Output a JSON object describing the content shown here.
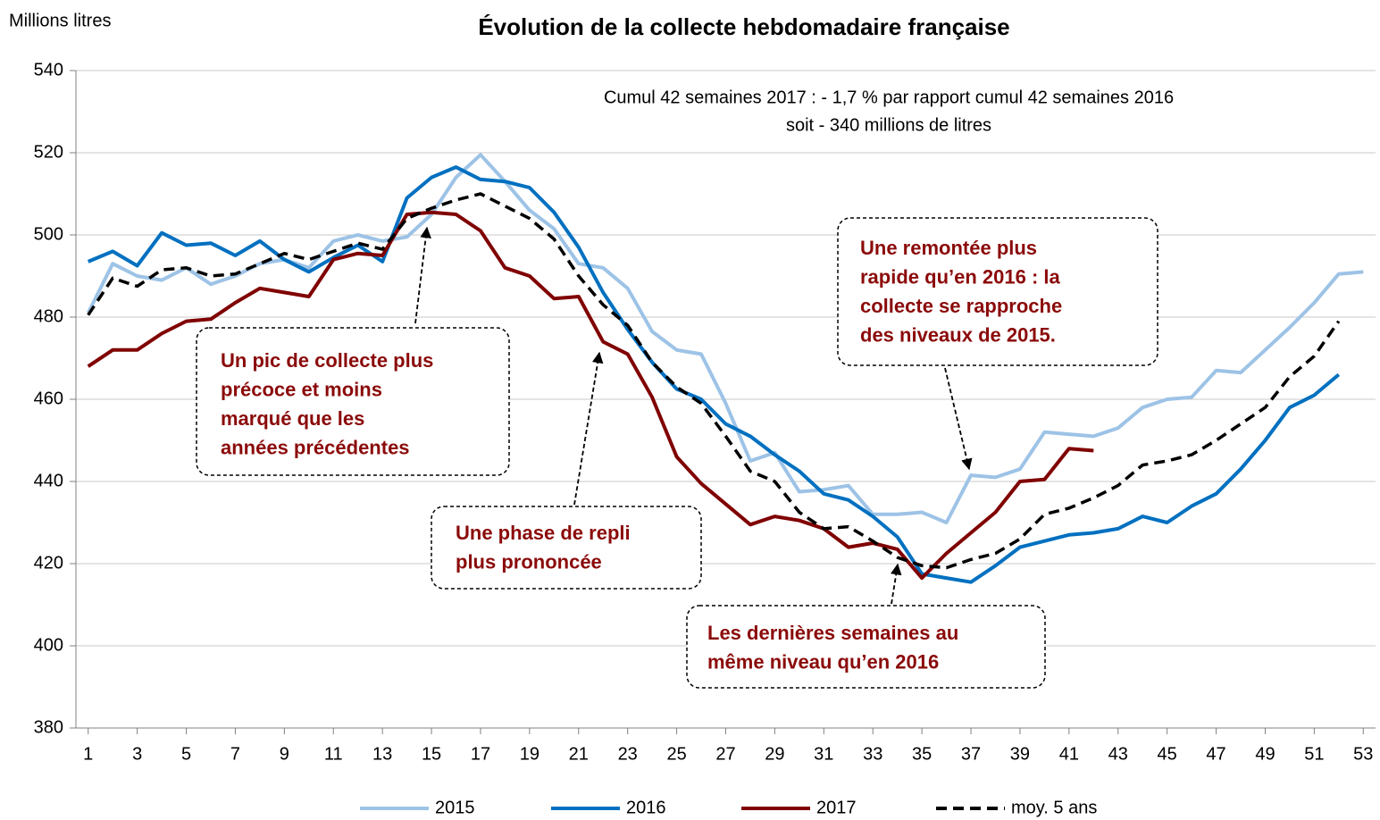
{
  "chart_data": {
    "type": "line",
    "title": "Évolution de la collecte hebdomadaire française",
    "subtitle": [
      "Cumul 42 semaines 2017 : - 1,7 % par rapport cumul 42 semaines 2016",
      "soit - 340 millions de litres"
    ],
    "y_label": "Millions litres",
    "x": [
      1,
      2,
      3,
      4,
      5,
      6,
      7,
      8,
      9,
      10,
      11,
      12,
      13,
      14,
      15,
      16,
      17,
      18,
      19,
      20,
      21,
      22,
      23,
      24,
      25,
      26,
      27,
      28,
      29,
      30,
      31,
      32,
      33,
      34,
      35,
      36,
      37,
      38,
      39,
      40,
      41,
      42,
      43,
      44,
      45,
      46,
      47,
      48,
      49,
      50,
      51,
      52,
      53
    ],
    "xlim": [
      0.5,
      53.5
    ],
    "xticks": [
      1,
      3,
      5,
      7,
      9,
      11,
      13,
      15,
      17,
      19,
      21,
      23,
      25,
      27,
      29,
      31,
      33,
      35,
      37,
      39,
      41,
      43,
      45,
      47,
      49,
      51,
      53
    ],
    "ylim": [
      380,
      540
    ],
    "yticks": [
      380,
      400,
      420,
      440,
      460,
      480,
      500,
      520,
      540
    ],
    "grid": true,
    "legend": "bottom",
    "series": [
      {
        "name": "2015",
        "color": "#9dc3e6",
        "dashed": false,
        "values": [
          481,
          493,
          490,
          489,
          492,
          488,
          490,
          493,
          494,
          492,
          498.5,
          500,
          498.5,
          499.5,
          505,
          514,
          519.5,
          513,
          506,
          501.5,
          493,
          492,
          487,
          476.5,
          472,
          471,
          459,
          445,
          447,
          437.5,
          438,
          439,
          432,
          432,
          432.5,
          430,
          441.5,
          441,
          443,
          452,
          451.5,
          451,
          453,
          458,
          460,
          460.5,
          467,
          466.5,
          472,
          477.5,
          483.5,
          490.5,
          491
        ]
      },
      {
        "name": "2016",
        "color": "#0070c0",
        "dashed": false,
        "values": [
          493.5,
          496,
          492.5,
          500.5,
          497.5,
          498,
          495,
          498.5,
          494,
          491,
          494.5,
          497.5,
          493.5,
          509,
          514,
          516.5,
          513.5,
          513,
          511.5,
          505.5,
          497,
          486,
          477,
          469,
          462.5,
          460,
          454,
          451,
          446.5,
          442.5,
          437,
          435.5,
          431.5,
          426.5,
          417.5,
          416.5,
          415.5,
          419.5,
          424,
          425.5,
          427,
          427.5,
          428.5,
          431.5,
          430,
          434,
          437,
          443,
          450,
          458,
          461,
          466,
          null
        ]
      },
      {
        "name": "2017",
        "color": "#800000",
        "dashed": false,
        "values": [
          468,
          472,
          472,
          476,
          479,
          479.5,
          483.5,
          487,
          486,
          485,
          494,
          495.5,
          495,
          505,
          505.5,
          505,
          501,
          492,
          490,
          484.5,
          485,
          474,
          471,
          460.5,
          446,
          439.5,
          434.5,
          429.5,
          431.5,
          430.5,
          428.5,
          424,
          425,
          423.5,
          416.5,
          422.5,
          427.5,
          432.5,
          440,
          440.5,
          448,
          447.5,
          null,
          null,
          null,
          null,
          null,
          null,
          null,
          null,
          null,
          null,
          null
        ]
      },
      {
        "name": "moy. 5 ans",
        "color": "#000000",
        "dashed": true,
        "values": [
          480.5,
          489.5,
          487.5,
          491.5,
          492,
          490,
          490.5,
          493,
          495.5,
          494,
          496,
          498,
          496.5,
          504,
          506.5,
          508.5,
          510,
          507,
          504,
          499,
          490,
          483,
          478,
          469,
          463,
          459,
          451,
          442.5,
          440,
          432.5,
          428.5,
          429,
          425.5,
          421.5,
          419.5,
          419,
          421,
          422.5,
          426,
          432,
          433.5,
          436,
          439,
          444,
          445,
          446.5,
          450,
          454,
          458,
          465.5,
          470.5,
          479,
          null
        ]
      }
    ],
    "annotations": [
      [
        "Un pic de collecte plus",
        "précoce et moins",
        "marqué que les",
        "années précédentes"
      ],
      [
        "Une phase de repli",
        "plus prononcée"
      ],
      [
        "Une remontée plus",
        "rapide qu’en 2016 : la",
        "collecte se rapproche",
        "des niveaux de 2015."
      ],
      [
        "Les dernières semaines au",
        "même niveau qu’en 2016"
      ]
    ]
  }
}
